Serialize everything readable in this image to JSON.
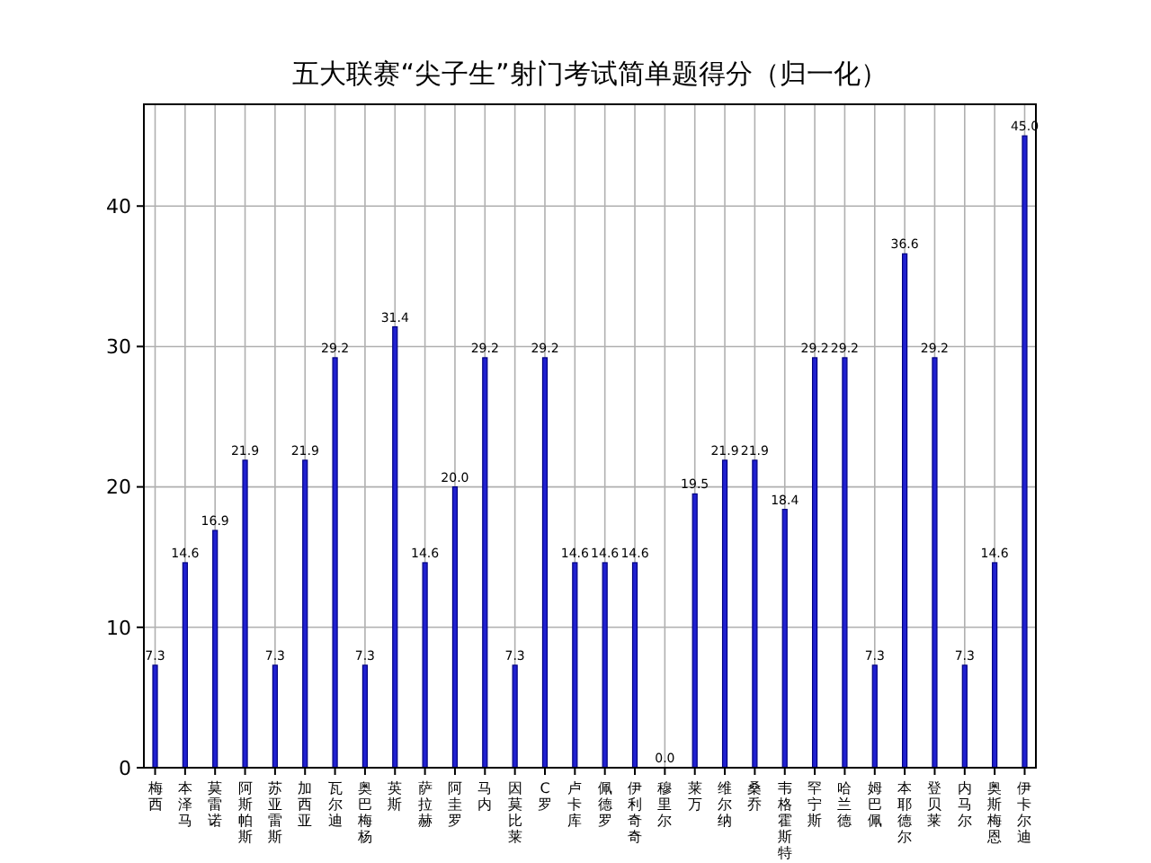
{
  "chart_data": {
    "type": "bar",
    "title": "五大联赛“尖子生”射门考试简单题得分（归一化）",
    "categories": [
      "梅西",
      "本泽马",
      "莫雷诺",
      "阿斯帕斯",
      "苏亚雷斯",
      "加西亚",
      "瓦尔迪",
      "奥巴梅杨",
      "英斯",
      "萨拉赫",
      "阿圭罗",
      "马内",
      "因莫比莱",
      "C罗",
      "卢卡库",
      "佩德罗",
      "伊利奇奇",
      "穆里尔",
      "莱万",
      "维尔纳",
      "桑乔",
      "韦格霍斯特",
      "罕宁斯",
      "哈兰德",
      "姆巴佩",
      "本耶德尔",
      "登贝莱",
      "内马尔",
      "奥斯梅恩",
      "伊卡尔迪"
    ],
    "values": [
      7.3,
      14.6,
      16.9,
      21.9,
      7.3,
      21.9,
      29.2,
      7.3,
      31.4,
      14.6,
      20.0,
      29.2,
      7.3,
      29.2,
      14.6,
      14.6,
      14.6,
      0.0,
      19.5,
      21.9,
      21.9,
      18.4,
      29.2,
      29.2,
      7.3,
      36.6,
      29.2,
      7.3,
      14.6,
      45.0
    ],
    "value_labels": [
      "7.3",
      "14.6",
      "16.9",
      "21.9",
      "7.3",
      "21.9",
      "29.2",
      "7.3",
      "31.4",
      "14.6",
      "20.0",
      "29.2",
      "7.3",
      "29.2",
      "14.6",
      "14.6",
      "14.6",
      "0.0",
      "19.5",
      "21.9",
      "21.9",
      "18.4",
      "29.2",
      "29.2",
      "7.3",
      "36.6",
      "29.2",
      "7.3",
      "14.6",
      "45.0"
    ],
    "color": "#2020d0",
    "ylim": [
      0,
      47.25
    ],
    "yticks": [
      0,
      10,
      20,
      30,
      40
    ],
    "grid": true
  }
}
